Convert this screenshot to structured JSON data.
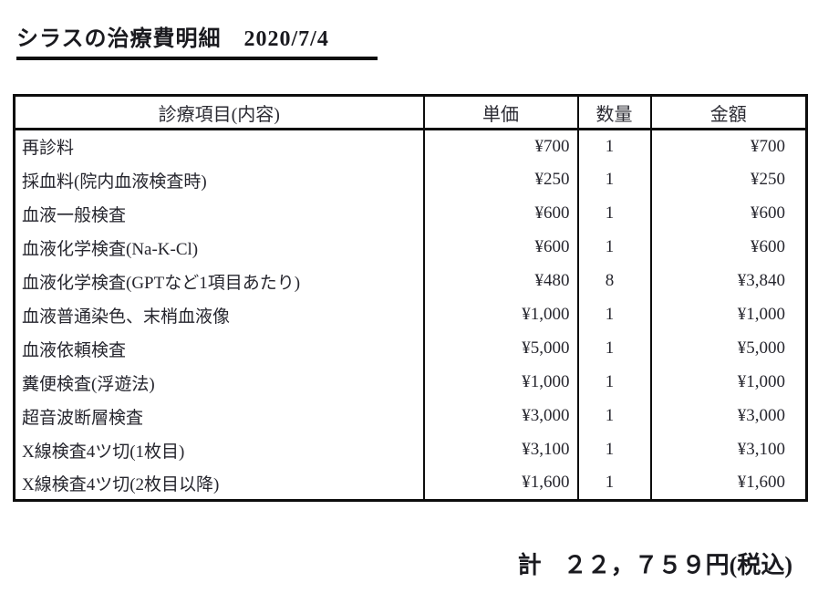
{
  "title": "シラスの治療費明細　2020/7/4",
  "table": {
    "headers": [
      "診療項目(内容)",
      "単価",
      "数量",
      "金額"
    ],
    "rows": [
      {
        "item": "再診料",
        "unit_price": "¥700",
        "quantity": "1",
        "amount": "¥700"
      },
      {
        "item": "採血料(院内血液検査時)",
        "unit_price": "¥250",
        "quantity": "1",
        "amount": "¥250"
      },
      {
        "item": "血液一般検査",
        "unit_price": "¥600",
        "quantity": "1",
        "amount": "¥600"
      },
      {
        "item": "血液化学検査(Na-K-Cl)",
        "unit_price": "¥600",
        "quantity": "1",
        "amount": "¥600"
      },
      {
        "item": "血液化学検査(GPTなど1項目あたり)",
        "unit_price": "¥480",
        "quantity": "8",
        "amount": "¥3,840"
      },
      {
        "item": "血液普通染色、末梢血液像",
        "unit_price": "¥1,000",
        "quantity": "1",
        "amount": "¥1,000"
      },
      {
        "item": "血液依頼検査",
        "unit_price": "¥5,000",
        "quantity": "1",
        "amount": "¥5,000"
      },
      {
        "item": "糞便検査(浮遊法)",
        "unit_price": "¥1,000",
        "quantity": "1",
        "amount": "¥1,000"
      },
      {
        "item": "超音波断層検査",
        "unit_price": "¥3,000",
        "quantity": "1",
        "amount": "¥3,000"
      },
      {
        "item": "X線検査4ツ切(1枚目)",
        "unit_price": "¥3,100",
        "quantity": "1",
        "amount": "¥3,100"
      },
      {
        "item": "X線検査4ツ切(2枚目以降)",
        "unit_price": "¥1,600",
        "quantity": "1",
        "amount": "¥1,600"
      }
    ]
  },
  "summary": {
    "total_label": "計",
    "total_value": "２２，７５９円(税込)"
  }
}
